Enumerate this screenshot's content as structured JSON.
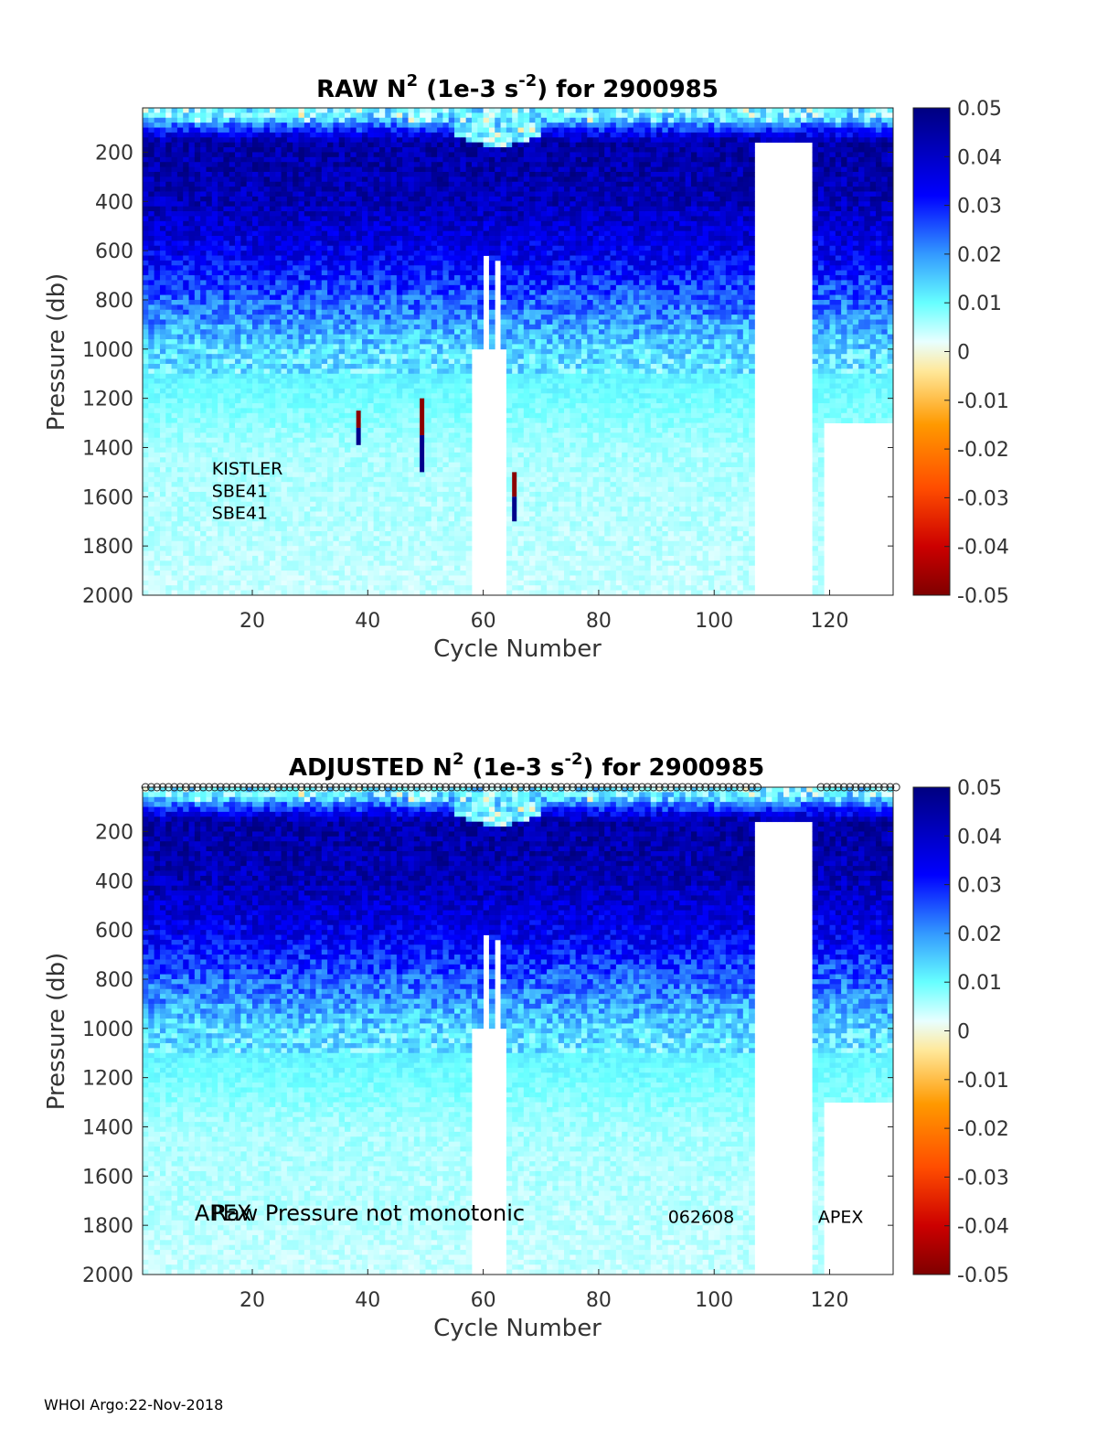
{
  "footer": "WHOI Argo:22-Nov-2018",
  "colormap": {
    "stops": [
      "#7f0000",
      "#ff1a00",
      "#ff9900",
      "#ffe89a",
      "#e0ffff",
      "#00ffff",
      "#3399ff",
      "#0000cc",
      "#000080"
    ]
  },
  "chart_data": [
    {
      "type": "heatmap",
      "title_main": "RAW N",
      "title_sup": "2",
      "title_mid": " (1e-3 s",
      "title_sup2": "-2",
      "title_end": ") for 2900985",
      "xlabel": "Cycle Number",
      "ylabel": "Pressure (db)",
      "xlim": [
        1,
        131
      ],
      "ylim": [
        2000,
        20
      ],
      "xticks": [
        "20",
        "40",
        "60",
        "80",
        "100",
        "120"
      ],
      "yticks": [
        "200",
        "400",
        "600",
        "800",
        "1000",
        "1200",
        "1400",
        "1600",
        "1800",
        "2000"
      ],
      "clim": [
        -0.05,
        0.05
      ],
      "cticks": [
        "0.05",
        "0.04",
        "0.03",
        "0.02",
        "0.01",
        "0",
        "-0.01",
        "-0.02",
        "-0.03",
        "-0.04",
        "-0.05"
      ],
      "annotations": [
        {
          "text": "KISTLER",
          "x": 13,
          "y": 1510
        },
        {
          "text": "SBE41",
          "x": 13,
          "y": 1600
        },
        {
          "text": "SBE41",
          "x": 13,
          "y": 1690
        }
      ],
      "gaps": [
        {
          "x0": 58,
          "x1": 64,
          "ymin": 1000
        },
        {
          "x0": 60,
          "x1": 61,
          "ymin": 620
        },
        {
          "x0": 62,
          "x1": 63,
          "ymin": 640
        },
        {
          "x0": 107,
          "x1": 117,
          "ymin": 160
        },
        {
          "x0": 119,
          "x1": 131,
          "ymin": 1300
        }
      ],
      "spikes": [
        {
          "x": 38,
          "p0": 1250,
          "p1": 1390
        },
        {
          "x": 49,
          "p0": 1200,
          "p1": 1500
        },
        {
          "x": 65,
          "p0": 1500,
          "p1": 1700
        }
      ],
      "profile": [
        {
          "p": 20,
          "v": 0.004
        },
        {
          "p": 150,
          "v": 0.045
        },
        {
          "p": 400,
          "v": 0.042
        },
        {
          "p": 600,
          "v": 0.035
        },
        {
          "p": 800,
          "v": 0.024
        },
        {
          "p": 1000,
          "v": 0.013
        },
        {
          "p": 1200,
          "v": 0.009
        },
        {
          "p": 1400,
          "v": 0.006
        },
        {
          "p": 2000,
          "v": 0.004
        }
      ]
    },
    {
      "type": "heatmap",
      "title_main": "ADJUSTED N",
      "title_sup": "2",
      "title_mid": " (1e-3 s",
      "title_sup2": "-2",
      "title_end": ") for 2900985",
      "xlabel": "Cycle Number",
      "ylabel": "Pressure (db)",
      "xlim": [
        1,
        131
      ],
      "ylim": [
        2000,
        20
      ],
      "xticks": [
        "20",
        "40",
        "60",
        "80",
        "100",
        "120"
      ],
      "yticks": [
        "200",
        "400",
        "600",
        "800",
        "1000",
        "1200",
        "1400",
        "1600",
        "1800",
        "2000"
      ],
      "clim": [
        -0.05,
        0.05
      ],
      "cticks": [
        "0.05",
        "0.04",
        "0.03",
        "0.02",
        "0.01",
        "0",
        "-0.01",
        "-0.02",
        "-0.03",
        "-0.04",
        "-0.05"
      ],
      "annotations": [
        {
          "text": "APEX",
          "x": 10,
          "y": 1780,
          "size": "lg"
        },
        {
          "text": "Raw Pressure not monotonic",
          "x": 13,
          "y": 1780,
          "size": "lg"
        },
        {
          "text": "062608",
          "x": 92,
          "y": 1790
        },
        {
          "text": "APEX",
          "x": 118,
          "y": 1790
        }
      ],
      "marker_row": true,
      "gaps": [
        {
          "x0": 58,
          "x1": 64,
          "ymin": 1000
        },
        {
          "x0": 60,
          "x1": 61,
          "ymin": 620
        },
        {
          "x0": 62,
          "x1": 63,
          "ymin": 640
        },
        {
          "x0": 107,
          "x1": 117,
          "ymin": 160
        },
        {
          "x0": 119,
          "x1": 131,
          "ymin": 1300
        }
      ],
      "spikes": [],
      "profile": [
        {
          "p": 20,
          "v": 0.004
        },
        {
          "p": 150,
          "v": 0.045
        },
        {
          "p": 400,
          "v": 0.042
        },
        {
          "p": 600,
          "v": 0.035
        },
        {
          "p": 800,
          "v": 0.024
        },
        {
          "p": 1000,
          "v": 0.013
        },
        {
          "p": 1200,
          "v": 0.009
        },
        {
          "p": 1400,
          "v": 0.006
        },
        {
          "p": 2000,
          "v": 0.004
        }
      ]
    }
  ]
}
